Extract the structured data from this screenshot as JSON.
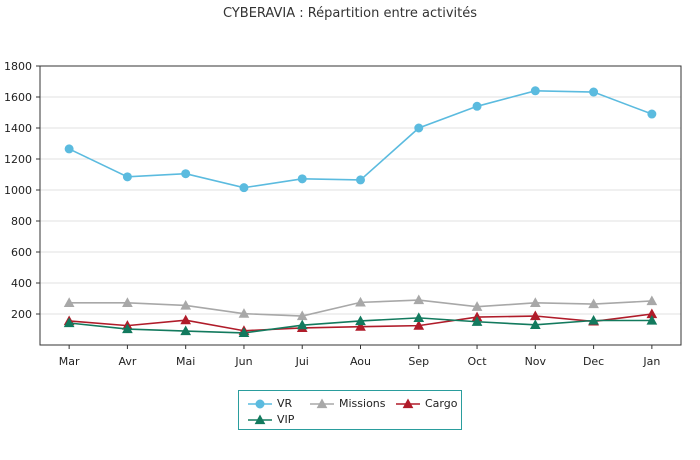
{
  "chart_data": {
    "type": "line",
    "title": "CYBERAVIA : Répartition entre activités",
    "categories": [
      "Mar",
      "Avr",
      "Mai",
      "Jun",
      "Jui",
      "Aou",
      "Sep",
      "Oct",
      "Nov",
      "Dec",
      "Jan"
    ],
    "ylim": [
      0,
      1800
    ],
    "yticks": [
      200,
      400,
      600,
      800,
      1000,
      1200,
      1400,
      1600,
      1800
    ],
    "grid": true,
    "legend_position": "bottom",
    "series": [
      {
        "name": "VR",
        "color": "#5bbbdf",
        "marker": "circle",
        "values": [
          1265,
          1085,
          1105,
          1015,
          1072,
          1065,
          1400,
          1540,
          1640,
          1632,
          1490
        ]
      },
      {
        "name": "Missions",
        "color": "#a8a8a8",
        "marker": "triangle",
        "values": [
          272,
          272,
          255,
          202,
          187,
          275,
          290,
          247,
          272,
          264,
          284
        ]
      },
      {
        "name": "Cargo",
        "color": "#b01c2a",
        "marker": "triangle",
        "values": [
          155,
          125,
          160,
          92,
          110,
          118,
          125,
          180,
          187,
          152,
          200
        ]
      },
      {
        "name": "VIP",
        "color": "#137a5e",
        "marker": "triangle",
        "values": [
          142,
          103,
          90,
          78,
          128,
          155,
          175,
          150,
          130,
          158,
          158
        ]
      }
    ]
  }
}
